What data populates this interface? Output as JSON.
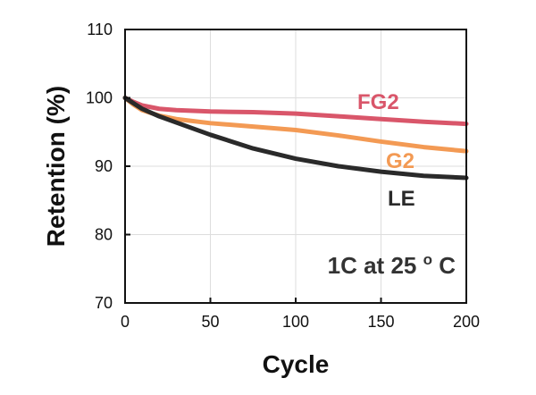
{
  "chart_data": {
    "type": "line",
    "title": "",
    "xlabel": "Cycle",
    "ylabel": "Retention (%)",
    "xlim": [
      0,
      200
    ],
    "ylim": [
      70,
      110
    ],
    "xticks": [
      0,
      50,
      100,
      150,
      200
    ],
    "yticks": [
      70,
      80,
      90,
      100,
      110
    ],
    "grid": true,
    "annotation": {
      "main": "1C at 25 ",
      "superscript": "o",
      "unit": "C"
    },
    "series": [
      {
        "name": "FG2",
        "color": "#d9566a",
        "x": [
          0,
          5,
          10,
          20,
          30,
          50,
          75,
          100,
          125,
          150,
          175,
          200
        ],
        "y": [
          100,
          99.4,
          98.9,
          98.4,
          98.2,
          98.0,
          97.9,
          97.7,
          97.3,
          96.9,
          96.5,
          96.2
        ]
      },
      {
        "name": "G2",
        "color": "#f39a54",
        "x": [
          0,
          5,
          10,
          20,
          30,
          50,
          75,
          100,
          125,
          150,
          175,
          200
        ],
        "y": [
          100,
          99.0,
          98.2,
          97.4,
          96.9,
          96.3,
          95.8,
          95.3,
          94.5,
          93.6,
          92.8,
          92.2
        ]
      },
      {
        "name": "LE",
        "color": "#2a2a2a",
        "x": [
          0,
          5,
          10,
          20,
          30,
          40,
          50,
          75,
          100,
          125,
          150,
          175,
          200
        ],
        "y": [
          100,
          99.2,
          98.4,
          97.3,
          96.4,
          95.5,
          94.6,
          92.6,
          91.1,
          90.0,
          89.2,
          88.6,
          88.3
        ]
      }
    ]
  }
}
